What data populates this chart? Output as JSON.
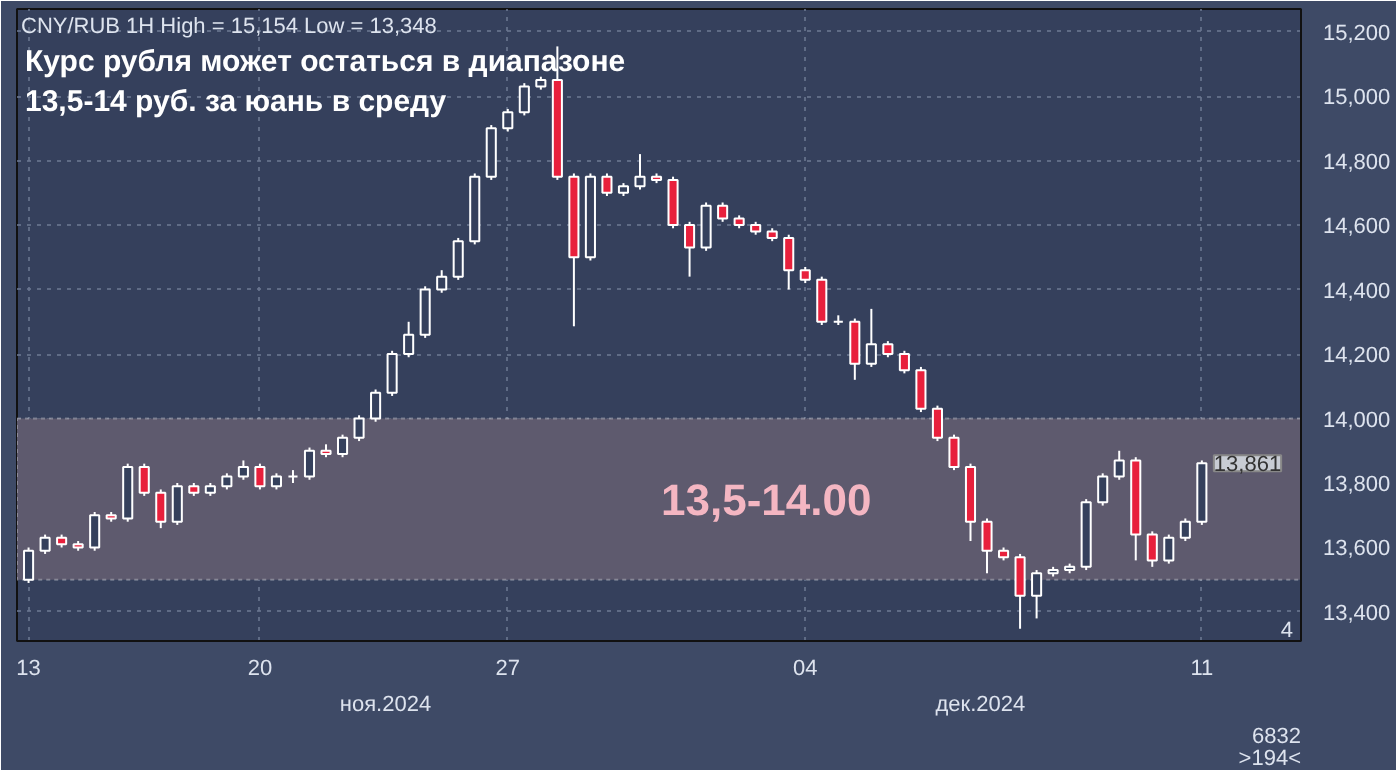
{
  "chart_data": {
    "type": "candlestick",
    "title": "Курс рубля может остаться в диапазоне\n13,5-14 руб. за юань в среду",
    "categories": [
      "13",
      null,
      null,
      null,
      null,
      null,
      null,
      null,
      null,
      null,
      null,
      null,
      null,
      null,
      "20",
      null,
      null,
      null,
      null,
      null,
      null,
      null,
      null,
      null,
      null,
      null,
      null,
      null,
      null,
      "27",
      null,
      null,
      null,
      null,
      null,
      null,
      null,
      null,
      null,
      null,
      null,
      null,
      null,
      null,
      null,
      null,
      null,
      "04",
      null,
      null,
      null,
      null,
      null,
      null,
      null,
      null,
      null,
      null,
      null,
      null,
      null,
      null,
      null,
      null,
      null,
      null,
      null,
      null,
      null,
      null,
      null,
      "11"
    ],
    "ohlc": [
      [
        13500,
        13600,
        13490,
        13590
      ],
      [
        13590,
        13640,
        13580,
        13630
      ],
      [
        13630,
        13640,
        13600,
        13610
      ],
      [
        13610,
        13620,
        13590,
        13600
      ],
      [
        13600,
        13710,
        13590,
        13700
      ],
      [
        13700,
        13710,
        13680,
        13690
      ],
      [
        13690,
        13860,
        13680,
        13850
      ],
      [
        13850,
        13860,
        13760,
        13770
      ],
      [
        13770,
        13780,
        13660,
        13680
      ],
      [
        13680,
        13800,
        13670,
        13790
      ],
      [
        13790,
        13800,
        13760,
        13770
      ],
      [
        13770,
        13800,
        13760,
        13790
      ],
      [
        13790,
        13830,
        13780,
        13820
      ],
      [
        13820,
        13870,
        13810,
        13850
      ],
      [
        13850,
        13860,
        13780,
        13790
      ],
      [
        13790,
        13830,
        13780,
        13820
      ],
      [
        13820,
        13840,
        13800,
        13820
      ],
      [
        13820,
        13910,
        13810,
        13900
      ],
      [
        13900,
        13920,
        13880,
        13890
      ],
      [
        13890,
        13950,
        13880,
        13940
      ],
      [
        13940,
        14010,
        13930,
        14000
      ],
      [
        14000,
        14090,
        13990,
        14080
      ],
      [
        14080,
        14210,
        14070,
        14200
      ],
      [
        14200,
        14300,
        14190,
        14260
      ],
      [
        14260,
        14410,
        14250,
        14400
      ],
      [
        14400,
        14460,
        14390,
        14440
      ],
      [
        14440,
        14560,
        14430,
        14550
      ],
      [
        14550,
        14760,
        14540,
        14750
      ],
      [
        14750,
        14910,
        14740,
        14900
      ],
      [
        14900,
        14960,
        14890,
        14950
      ],
      [
        14950,
        15040,
        14940,
        15030
      ],
      [
        15030,
        15060,
        15020,
        15050
      ],
      [
        15050,
        15154,
        14740,
        14750
      ],
      [
        14750,
        14760,
        14286,
        14500
      ],
      [
        14500,
        14760,
        14490,
        14750
      ],
      [
        14750,
        14760,
        14690,
        14700
      ],
      [
        14700,
        14730,
        14690,
        14720
      ],
      [
        14720,
        14820,
        14710,
        14750
      ],
      [
        14750,
        14760,
        14730,
        14740
      ],
      [
        14740,
        14750,
        14590,
        14600
      ],
      [
        14600,
        14610,
        14440,
        14530
      ],
      [
        14530,
        14670,
        14520,
        14660
      ],
      [
        14660,
        14670,
        14610,
        14620
      ],
      [
        14620,
        14630,
        14590,
        14600
      ],
      [
        14600,
        14610,
        14570,
        14580
      ],
      [
        14580,
        14590,
        14550,
        14560
      ],
      [
        14560,
        14570,
        14400,
        14460
      ],
      [
        14460,
        14470,
        14420,
        14430
      ],
      [
        14430,
        14440,
        14290,
        14300
      ],
      [
        14300,
        14320,
        14290,
        14300
      ],
      [
        14300,
        14310,
        14120,
        14170
      ],
      [
        14170,
        14340,
        14160,
        14230
      ],
      [
        14230,
        14240,
        14190,
        14200
      ],
      [
        14200,
        14210,
        14140,
        14150
      ],
      [
        14150,
        14160,
        14020,
        14030
      ],
      [
        14030,
        14040,
        13930,
        13940
      ],
      [
        13940,
        13950,
        13840,
        13850
      ],
      [
        13850,
        13860,
        13620,
        13680
      ],
      [
        13680,
        13690,
        13520,
        13590
      ],
      [
        13590,
        13600,
        13560,
        13570
      ],
      [
        13570,
        13580,
        13348,
        13450
      ],
      [
        13450,
        13530,
        13380,
        13520
      ],
      [
        13520,
        13540,
        13510,
        13530
      ],
      [
        13530,
        13550,
        13520,
        13540
      ],
      [
        13540,
        13750,
        13530,
        13740
      ],
      [
        13740,
        13830,
        13730,
        13820
      ],
      [
        13820,
        13900,
        13810,
        13870
      ],
      [
        13870,
        13880,
        13560,
        13640
      ],
      [
        13640,
        13650,
        13540,
        13560
      ],
      [
        13560,
        13640,
        13550,
        13630
      ],
      [
        13630,
        13690,
        13620,
        13680
      ],
      [
        13680,
        13870,
        13670,
        13861
      ]
    ],
    "ylim": [
      13310,
      15270
    ],
    "yticks": [
      {
        "value": 13400,
        "label": "13,400"
      },
      {
        "value": 13600,
        "label": "13,600"
      },
      {
        "value": 13800,
        "label": "13,800"
      },
      {
        "value": 14000,
        "label": "14,000"
      },
      {
        "value": 14200,
        "label": "14,200"
      },
      {
        "value": 14400,
        "label": "14,400"
      },
      {
        "value": 14600,
        "label": "14,600"
      },
      {
        "value": 14800,
        "label": "14,800"
      },
      {
        "value": 15000,
        "label": "15,000"
      },
      {
        "value": 15200,
        "label": "15,200"
      }
    ],
    "grid": true,
    "bands": [
      {
        "axis": "y",
        "from": 13500,
        "to": 14000,
        "label": "13,5-14.00",
        "color": "#5e5a6e"
      }
    ],
    "annotations": [
      "CNY/RUB 1H High = 15,154 Low = 13,348",
      {
        "text": "13,861",
        "x": "11",
        "y": 13861
      },
      "ноя.2024",
      "дек.2024",
      "4",
      "6832",
      ">194<"
    ]
  }
}
